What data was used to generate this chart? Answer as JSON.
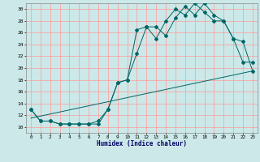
{
  "xlabel": "Humidex (Indice chaleur)",
  "bg_color": "#cce8e8",
  "grid_color": "#ff9999",
  "line_color": "#006666",
  "xlim": [
    -0.5,
    23.5
  ],
  "ylim": [
    9.0,
    31.0
  ],
  "xticks": [
    0,
    1,
    2,
    3,
    4,
    5,
    6,
    7,
    8,
    9,
    10,
    11,
    12,
    13,
    14,
    15,
    16,
    17,
    18,
    19,
    20,
    21,
    22,
    23
  ],
  "yticks": [
    10,
    12,
    14,
    16,
    18,
    20,
    22,
    24,
    26,
    28,
    30
  ],
  "line1_x": [
    0,
    1,
    2,
    3,
    4,
    5,
    6,
    7,
    8,
    9,
    10,
    11,
    12,
    13,
    14,
    15,
    16,
    17,
    18,
    19,
    20,
    21,
    22,
    23
  ],
  "line1_y": [
    13,
    11,
    11,
    10.5,
    10.5,
    10.5,
    10.5,
    11,
    13,
    17.5,
    18,
    26.5,
    27,
    27,
    25.5,
    28.5,
    30.5,
    29,
    31,
    29,
    28,
    25,
    21,
    21
  ],
  "line2_x": [
    0,
    1,
    2,
    3,
    4,
    5,
    6,
    7,
    8,
    9,
    10,
    11,
    12,
    13,
    14,
    15,
    16,
    17,
    18,
    19,
    20,
    21,
    22,
    23
  ],
  "line2_y": [
    13,
    11,
    11,
    10.5,
    10.5,
    10.5,
    10.5,
    10.5,
    13,
    17.5,
    18,
    22.5,
    27,
    25,
    28,
    30,
    29,
    31,
    29.5,
    28,
    28,
    25,
    24.5,
    19.5
  ],
  "line3_x": [
    0,
    23
  ],
  "line3_y": [
    11.5,
    19.5
  ]
}
